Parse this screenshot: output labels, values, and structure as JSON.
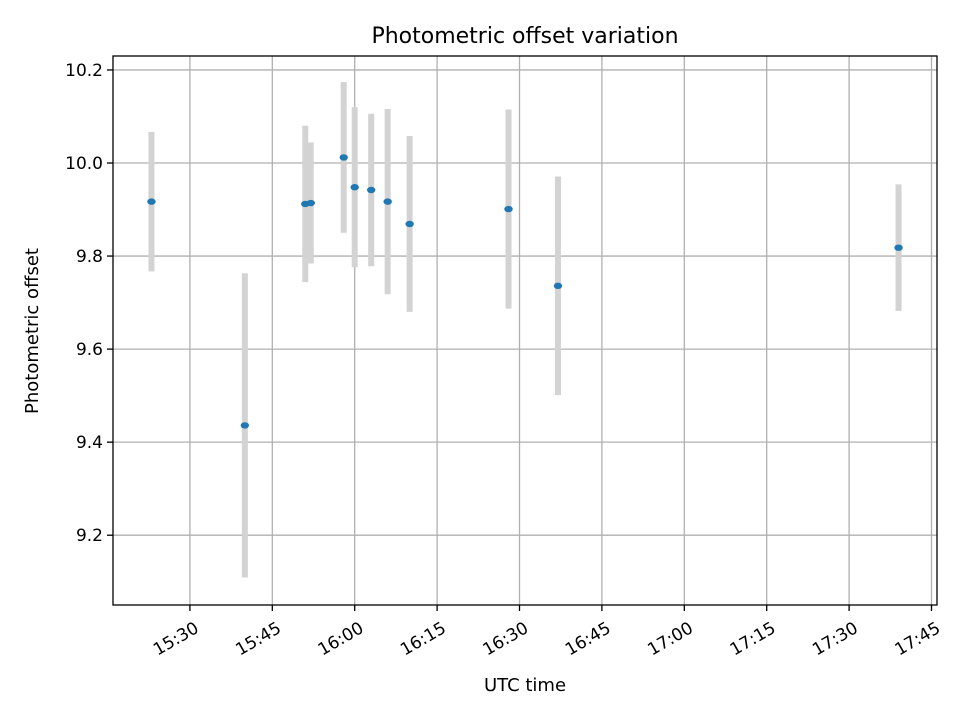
{
  "chart_data": {
    "type": "scatter",
    "title": "Photometric offset variation",
    "xlabel": "UTC time",
    "ylabel": "Photometric offset",
    "x_unit": "time of day (HH:MM, UTC)",
    "xlim": [
      "15:16",
      "17:46"
    ],
    "ylim": [
      9.05,
      10.23
    ],
    "grid": true,
    "x_ticks": [
      "15:30",
      "15:45",
      "16:00",
      "16:15",
      "16:30",
      "16:45",
      "17:00",
      "17:15",
      "17:30",
      "17:45"
    ],
    "y_ticks": [
      9.2,
      9.4,
      9.6,
      9.8,
      10.0,
      10.2
    ],
    "y_tick_labels": [
      "9.2",
      "9.4",
      "9.6",
      "9.8",
      "10.0",
      "10.2"
    ],
    "marker_color": "#1f77b4",
    "errorbar_color": "#d3d3d3",
    "points": [
      {
        "x": "15:23",
        "y": 9.917,
        "yerr": 0.15
      },
      {
        "x": "15:40",
        "y": 9.436,
        "yerr": 0.327
      },
      {
        "x": "15:51",
        "y": 9.912,
        "yerr": 0.168
      },
      {
        "x": "15:52",
        "y": 9.914,
        "yerr": 0.13
      },
      {
        "x": "15:58",
        "y": 10.012,
        "yerr": 0.162
      },
      {
        "x": "16:00",
        "y": 9.948,
        "yerr": 0.172
      },
      {
        "x": "16:03",
        "y": 9.942,
        "yerr": 0.164
      },
      {
        "x": "16:06",
        "y": 9.917,
        "yerr": 0.199
      },
      {
        "x": "16:10",
        "y": 9.869,
        "yerr": 0.189
      },
      {
        "x": "16:28",
        "y": 9.901,
        "yerr": 0.214
      },
      {
        "x": "16:37",
        "y": 9.736,
        "yerr": 0.235
      },
      {
        "x": "17:39",
        "y": 9.818,
        "yerr": 0.136
      }
    ]
  }
}
